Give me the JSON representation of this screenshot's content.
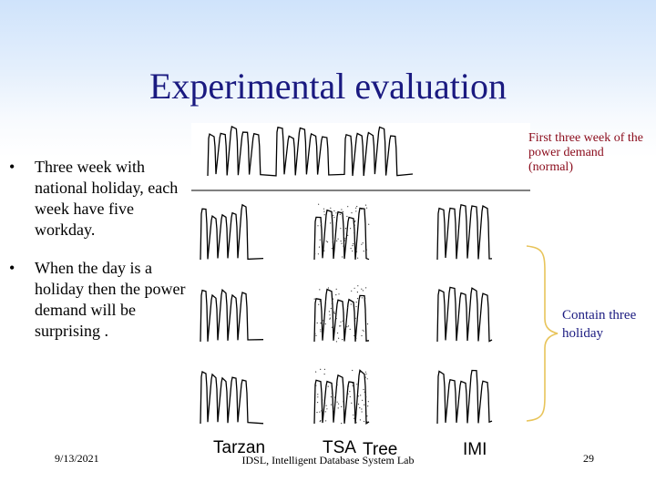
{
  "slide": {
    "title": "Experimental evaluation",
    "bullets": [
      {
        "mark": "•",
        "text": "Three week with national holiday, each week have five workday."
      },
      {
        "mark": "•",
        "text": "When the day is a holiday then the power demand will be surprising ."
      }
    ],
    "note_top": "First three week of the power demand (normal)",
    "note_brace": "Contain three holiday",
    "figure_labels": [
      "Tarzan",
      "TSA",
      "Tree",
      "IMI"
    ],
    "footer": {
      "date": "9/13/2021",
      "center": "IDSL, Intelligent Database System Lab",
      "page": "29"
    },
    "colors": {
      "title": "#1a1a80",
      "note_top": "#8a0a1a",
      "note_brace": "#1a1a80",
      "brace": "#e8c45a"
    }
  }
}
